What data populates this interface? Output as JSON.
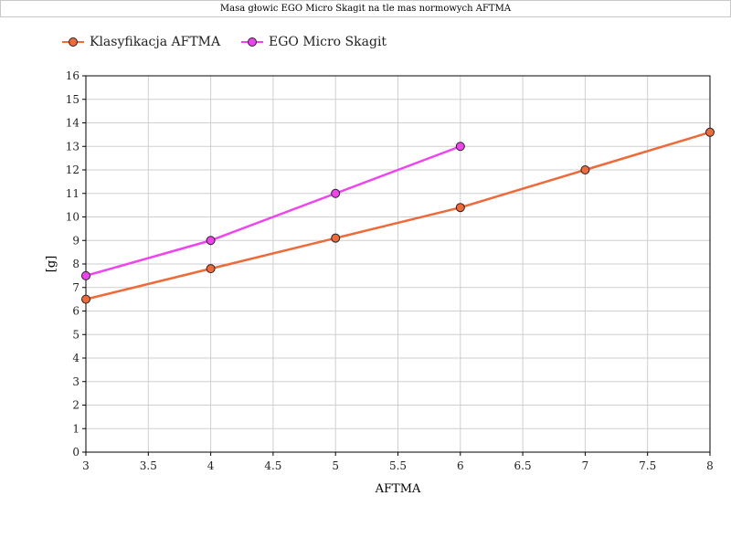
{
  "chart_data": {
    "type": "line",
    "title": "Masa głowic EGO Micro Skagit na tle mas normowych AFTMA",
    "xlabel": "AFTMA",
    "ylabel": "[g]",
    "xlim": [
      3,
      8
    ],
    "ylim": [
      0,
      16
    ],
    "xticks": [
      3,
      3.5,
      4,
      4.5,
      5,
      5.5,
      6,
      6.5,
      7,
      7.5,
      8
    ],
    "yticks": [
      0,
      1,
      2,
      3,
      4,
      5,
      6,
      7,
      8,
      9,
      10,
      11,
      12,
      13,
      14,
      15,
      16
    ],
    "grid": true,
    "legend_position": "top-left",
    "series": [
      {
        "name": "Klasyfikacja AFTMA",
        "color": "#ee6a3a",
        "marker_fill": "#ee6a3a",
        "x": [
          3,
          4,
          5,
          6,
          7,
          8
        ],
        "y": [
          6.5,
          7.8,
          9.1,
          10.4,
          12.0,
          13.6
        ]
      },
      {
        "name": "EGO Micro Skagit",
        "color": "#ee44ee",
        "marker_fill": "#ee44ee",
        "x": [
          3,
          4,
          5,
          6
        ],
        "y": [
          7.5,
          9.0,
          11.0,
          13.0
        ]
      }
    ]
  }
}
